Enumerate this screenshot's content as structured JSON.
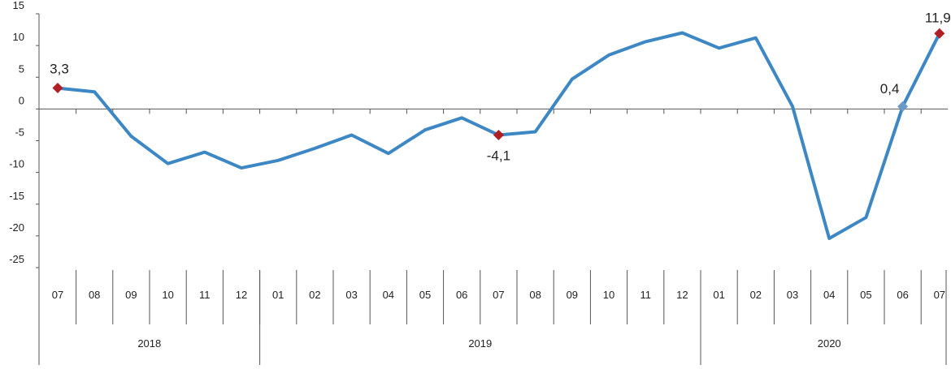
{
  "chart_data": {
    "type": "line",
    "title": "",
    "xlabel": "",
    "ylabel": "",
    "ylim": [
      -25,
      15
    ],
    "yticks": [
      "15",
      "10",
      "5",
      "0",
      "-5",
      "-10",
      "-15",
      "-20",
      "-25"
    ],
    "grid": false,
    "legend": "none",
    "categories": [
      "07",
      "08",
      "09",
      "10",
      "11",
      "12",
      "01",
      "02",
      "03",
      "04",
      "05",
      "06",
      "07",
      "08",
      "09",
      "10",
      "11",
      "12",
      "01",
      "02",
      "03",
      "04",
      "05",
      "06",
      "07"
    ],
    "years": [
      {
        "label": "2018",
        "months": 6
      },
      {
        "label": "2019",
        "months": 12
      },
      {
        "label": "2020",
        "months": 7
      }
    ],
    "series": [
      {
        "values": [
          3.3,
          2.7,
          -4.3,
          -8.6,
          -6.8,
          -9.3,
          -8.1,
          -6.2,
          -4.1,
          -7.0,
          -3.3,
          -1.4,
          -4.1,
          -3.6,
          4.7,
          8.5,
          10.6,
          12.0,
          9.6,
          11.2,
          0.4,
          -20.4,
          -17.1,
          0.4,
          11.9
        ],
        "color": "#3c87c4"
      }
    ],
    "highlighted_points": [
      {
        "index": 0,
        "label": "3,3",
        "color": "#b01f24"
      },
      {
        "index": 12,
        "label": "-4,1",
        "color": "#b01f24"
      },
      {
        "index": 23,
        "label": "0,4",
        "color": "#6b9ac7"
      },
      {
        "index": 24,
        "label": "11,9",
        "color": "#b01f24"
      }
    ]
  }
}
